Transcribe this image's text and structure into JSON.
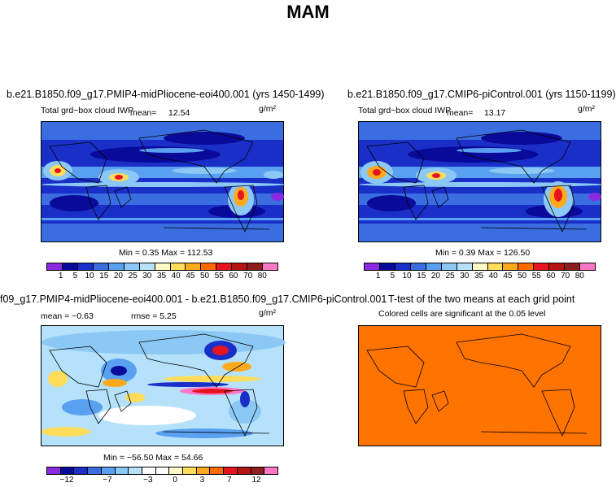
{
  "page_title": "MAM",
  "colors": {
    "cloud_scale": [
      "#8a2be2",
      "#0a0a9a",
      "#1a2fc8",
      "#3a6ee0",
      "#5aa0f0",
      "#8cc8f5",
      "#b5e2fa",
      "#fffac8",
      "#ffdc5a",
      "#ffaa1e",
      "#ff6a00",
      "#e6141e",
      "#b41414",
      "#8c1e1e",
      "#ff78c8"
    ],
    "diff_scale": [
      "#8a2be2",
      "#0a0a9a",
      "#1a2fc8",
      "#3a6ee0",
      "#5aa0f0",
      "#8cc8f5",
      "#b5e2fa",
      "#ffffff",
      "#ffffff",
      "#fffac8",
      "#ffdc5a",
      "#ffaa1e",
      "#ff6a00",
      "#e6141e",
      "#b41414",
      "#8c1e1e",
      "#ff78c8"
    ],
    "ttest": "#ff7300"
  },
  "panels": {
    "p1": {
      "title": "b.e21.B1850.f09_g17.PMIP4-midPliocene-eoi400.001 (yrs 1450-1499)",
      "var_label": "Total grd−box cloud IWP",
      "mean_label": "mean=",
      "mean_value": "12.54",
      "units": "g/m²",
      "minmax": "Min =    0.35 Max = 112.53",
      "ticks": [
        "1",
        "5",
        "10",
        "15",
        "20",
        "25",
        "30",
        "35",
        "40",
        "45",
        "50",
        "55",
        "60",
        "70",
        "80"
      ]
    },
    "p2": {
      "title": "b.e21.B1850.f09_g17.CMIP6-piControl.001 (yrs 1150-1199)",
      "var_label": "Total grd−box cloud IWP",
      "mean_label": "mean=",
      "mean_value": "13.17",
      "units": "g/m²",
      "minmax": "Min =    0.39 Max = 126.50",
      "ticks": [
        "1",
        "5",
        "10",
        "15",
        "20",
        "25",
        "30",
        "35",
        "40",
        "45",
        "50",
        "55",
        "60",
        "70",
        "80"
      ]
    },
    "p3": {
      "title": "f09_g17.PMIP4-midPliocene-eoi400.001 - b.e21.B1850.f09_g17.CMIP6-piControl.001",
      "mean_text": "mean =  −0.63",
      "rmse_text": "rmse =    5.25",
      "units": "g/m²",
      "minmax": "Min = −56.50 Max =  54.66",
      "ticks": [
        "−12",
        "−7",
        "−3",
        "0",
        "3",
        "7",
        "12"
      ]
    },
    "p4": {
      "title": "T-test of the two means at each grid point",
      "subtitle": "Colored cells are significant at the 0.05 level"
    }
  }
}
